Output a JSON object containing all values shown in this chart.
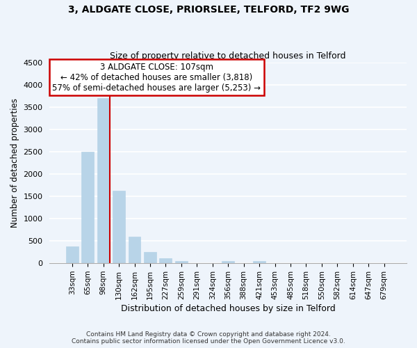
{
  "title": "3, ALDGATE CLOSE, PRIORSLEE, TELFORD, TF2 9WG",
  "subtitle": "Size of property relative to detached houses in Telford",
  "xlabel": "Distribution of detached houses by size in Telford",
  "ylabel": "Number of detached properties",
  "bar_labels": [
    "33sqm",
    "65sqm",
    "98sqm",
    "130sqm",
    "162sqm",
    "195sqm",
    "227sqm",
    "259sqm",
    "291sqm",
    "324sqm",
    "356sqm",
    "388sqm",
    "421sqm",
    "453sqm",
    "485sqm",
    "518sqm",
    "550sqm",
    "582sqm",
    "614sqm",
    "647sqm",
    "679sqm"
  ],
  "bar_values": [
    375,
    2500,
    3700,
    1625,
    600,
    245,
    105,
    55,
    0,
    0,
    55,
    0,
    50,
    0,
    0,
    0,
    0,
    0,
    0,
    0,
    0
  ],
  "bar_color": "#b8d4e8",
  "property_line_label": "3 ALDGATE CLOSE: 107sqm",
  "annotation_line1": "← 42% of detached houses are smaller (3,818)",
  "annotation_line2": "57% of semi-detached houses are larger (5,253) →",
  "annotation_box_facecolor": "#ffffff",
  "annotation_box_edgecolor": "#cc0000",
  "vline_color": "#cc0000",
  "ylim": [
    0,
    4500
  ],
  "yticks": [
    0,
    500,
    1000,
    1500,
    2000,
    2500,
    3000,
    3500,
    4000,
    4500
  ],
  "footnote1": "Contains HM Land Registry data © Crown copyright and database right 2024.",
  "footnote2": "Contains public sector information licensed under the Open Government Licence v3.0.",
  "bg_color": "#eef4fb",
  "grid_color": "#ffffff"
}
